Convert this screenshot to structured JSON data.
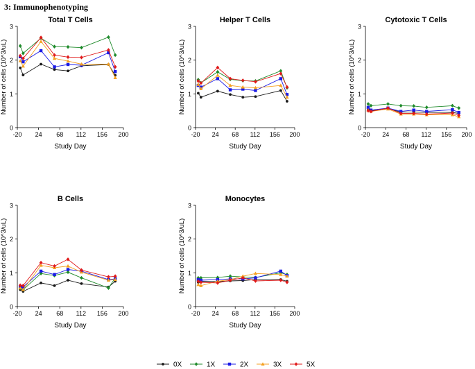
{
  "page_title": "3: Immunophenotyping",
  "colors": {
    "0X": "#1a1a1a",
    "1X": "#1e8a2a",
    "2X": "#1a1ae6",
    "3X": "#f5a020",
    "5X": "#e01a1a"
  },
  "legend": [
    {
      "key": "0X",
      "label": "0X",
      "marker": "circle"
    },
    {
      "key": "1X",
      "label": "1X",
      "marker": "diamond"
    },
    {
      "key": "2X",
      "label": "2X",
      "marker": "square"
    },
    {
      "key": "3X",
      "label": "3X",
      "marker": "triangle"
    },
    {
      "key": "5X",
      "label": "5X",
      "marker": "diamond"
    }
  ],
  "chart_data": [
    {
      "type": "line",
      "title": "Total T Cells",
      "xlabel": "Study Day",
      "ylabel": "Number of cells (10^3/uL)",
      "xlim": [
        -20,
        200
      ],
      "ylim": [
        0,
        3
      ],
      "xticks": [
        -20,
        24,
        68,
        112,
        156,
        200
      ],
      "yticks": [
        0,
        1,
        2,
        3
      ],
      "x": [
        -14,
        -8,
        29,
        57,
        85,
        113,
        169,
        183
      ],
      "series": [
        {
          "name": "0X",
          "values": [
            1.77,
            1.56,
            1.88,
            1.72,
            1.68,
            1.83,
            1.87,
            1.55
          ]
        },
        {
          "name": "1X",
          "values": [
            2.42,
            2.2,
            2.65,
            2.4,
            2.39,
            2.37,
            2.68,
            2.15
          ]
        },
        {
          "name": "2X",
          "values": [
            2.1,
            1.95,
            2.28,
            1.8,
            1.87,
            1.85,
            2.22,
            1.66
          ]
        },
        {
          "name": "3X",
          "values": [
            1.98,
            1.82,
            2.55,
            2.05,
            1.97,
            1.88,
            1.88,
            1.48
          ]
        },
        {
          "name": "5X",
          "values": [
            2.13,
            2.05,
            2.67,
            2.15,
            2.09,
            2.08,
            2.3,
            1.8
          ]
        }
      ]
    },
    {
      "type": "line",
      "title": "Helper T Cells",
      "xlabel": "Study Day",
      "ylabel": "Number of cells (10^3/uL)",
      "xlim": [
        -20,
        200
      ],
      "ylim": [
        0,
        3
      ],
      "xticks": [
        -20,
        24,
        68,
        112,
        156,
        200
      ],
      "yticks": [
        0,
        1,
        2,
        3
      ],
      "x": [
        -14,
        -8,
        29,
        57,
        85,
        113,
        169,
        183
      ],
      "series": [
        {
          "name": "0X",
          "values": [
            1.02,
            0.9,
            1.08,
            0.98,
            0.9,
            0.92,
            1.1,
            0.78
          ]
        },
        {
          "name": "1X",
          "values": [
            1.42,
            1.33,
            1.65,
            1.43,
            1.39,
            1.38,
            1.68,
            1.18
          ]
        },
        {
          "name": "2X",
          "values": [
            1.25,
            1.2,
            1.45,
            1.12,
            1.14,
            1.1,
            1.45,
            0.98
          ]
        },
        {
          "name": "3X",
          "values": [
            1.28,
            1.15,
            1.55,
            1.25,
            1.2,
            1.18,
            1.25,
            0.9
          ]
        },
        {
          "name": "5X",
          "values": [
            1.38,
            1.32,
            1.78,
            1.45,
            1.4,
            1.36,
            1.6,
            1.2
          ]
        }
      ]
    },
    {
      "type": "line",
      "title": "Cytotoxic T Cells",
      "xlabel": "Study Day",
      "ylabel": "Number of cells (10^3/uL)",
      "xlim": [
        -20,
        200
      ],
      "ylim": [
        0,
        3
      ],
      "xticks": [
        -20,
        24,
        68,
        112,
        156,
        200
      ],
      "yticks": [
        0,
        1,
        2,
        3
      ],
      "x": [
        -14,
        -8,
        29,
        57,
        85,
        113,
        169,
        183
      ],
      "series": [
        {
          "name": "0X",
          "values": [
            0.55,
            0.5,
            0.56,
            0.46,
            0.46,
            0.45,
            0.45,
            0.42
          ]
        },
        {
          "name": "1X",
          "values": [
            0.7,
            0.65,
            0.7,
            0.65,
            0.64,
            0.6,
            0.65,
            0.58
          ]
        },
        {
          "name": "2X",
          "values": [
            0.6,
            0.52,
            0.58,
            0.48,
            0.52,
            0.48,
            0.53,
            0.45
          ]
        },
        {
          "name": "3X",
          "values": [
            0.52,
            0.48,
            0.55,
            0.4,
            0.4,
            0.38,
            0.38,
            0.32
          ]
        },
        {
          "name": "5X",
          "values": [
            0.5,
            0.48,
            0.58,
            0.42,
            0.42,
            0.4,
            0.43,
            0.36
          ]
        }
      ]
    },
    {
      "type": "line",
      "title": "B Cells",
      "xlabel": "Study Day",
      "ylabel": "Number of cells (10^3/uL)",
      "xlim": [
        -20,
        200
      ],
      "ylim": [
        0,
        3
      ],
      "xticks": [
        -20,
        24,
        68,
        112,
        156,
        200
      ],
      "yticks": [
        0,
        1,
        2,
        3
      ],
      "x": [
        -14,
        -8,
        29,
        57,
        85,
        113,
        169,
        183
      ],
      "series": [
        {
          "name": "0X",
          "values": [
            0.5,
            0.45,
            0.7,
            0.62,
            0.78,
            0.68,
            0.58,
            0.75
          ]
        },
        {
          "name": "1X",
          "values": [
            0.55,
            0.5,
            0.98,
            0.92,
            1.02,
            0.85,
            0.55,
            0.85
          ]
        },
        {
          "name": "2X",
          "values": [
            0.6,
            0.58,
            1.05,
            0.95,
            1.1,
            1.05,
            0.8,
            0.82
          ]
        },
        {
          "name": "3X",
          "values": [
            0.55,
            0.5,
            1.22,
            1.15,
            1.2,
            1.02,
            0.78,
            0.8
          ]
        },
        {
          "name": "5X",
          "values": [
            0.63,
            0.62,
            1.3,
            1.2,
            1.4,
            1.08,
            0.88,
            0.9
          ]
        }
      ]
    },
    {
      "type": "line",
      "title": "Monocytes",
      "xlabel": "Study Day",
      "ylabel": "Number of cells (10^3/uL)",
      "xlim": [
        -20,
        200
      ],
      "ylim": [
        0,
        3
      ],
      "xticks": [
        -20,
        24,
        68,
        112,
        156,
        200
      ],
      "yticks": [
        0,
        1,
        2,
        3
      ],
      "x": [
        -14,
        -8,
        29,
        57,
        85,
        113,
        169,
        183
      ],
      "series": [
        {
          "name": "0X",
          "values": [
            0.72,
            0.75,
            0.74,
            0.76,
            0.77,
            0.8,
            0.8,
            0.75
          ]
        },
        {
          "name": "1X",
          "values": [
            0.85,
            0.85,
            0.86,
            0.9,
            0.88,
            0.86,
            1.0,
            0.95
          ]
        },
        {
          "name": "2X",
          "values": [
            0.8,
            0.78,
            0.8,
            0.82,
            0.82,
            0.85,
            1.05,
            0.92
          ]
        },
        {
          "name": "3X",
          "values": [
            0.65,
            0.62,
            0.75,
            0.8,
            0.9,
            0.98,
            0.95,
            0.9
          ]
        },
        {
          "name": "5X",
          "values": [
            0.75,
            0.72,
            0.7,
            0.78,
            0.85,
            0.76,
            0.78,
            0.72
          ]
        }
      ]
    }
  ]
}
